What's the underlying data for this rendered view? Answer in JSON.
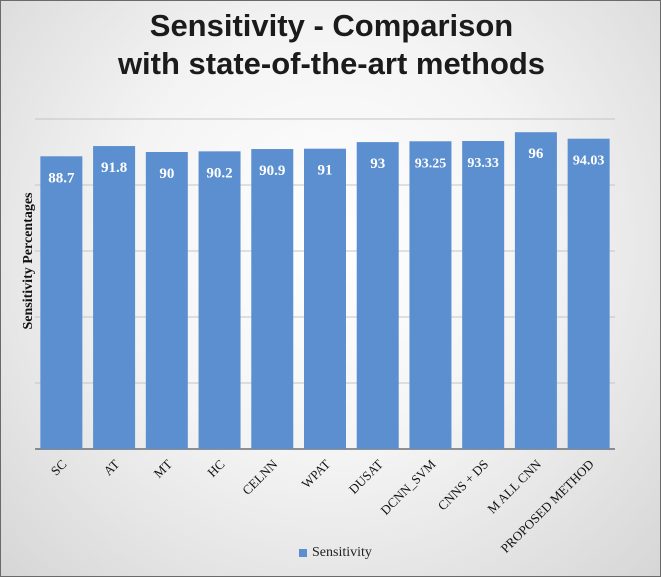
{
  "chart_data": {
    "type": "bar",
    "title_lines": [
      "Sensitivity - Comparison",
      "with state-of-the-art methods"
    ],
    "xlabel": "",
    "ylabel": "Sensitivity  Percentages",
    "categories": [
      "SC",
      "AT",
      "MT",
      "HC",
      "CELNN",
      "WPAT",
      "DUSAT",
      "DCNN_SVM",
      "CNNS + DS",
      "M ALL CNN",
      "PROPOSED METHOD"
    ],
    "series": [
      {
        "name": "Sensitivity",
        "values": [
          88.7,
          91.8,
          90,
          90.2,
          90.9,
          91,
          93,
          93.25,
          93.33,
          96,
          94.03
        ],
        "labels": [
          "88.7",
          "91.8",
          "90",
          "90.2",
          "90.9",
          "91",
          "93",
          "93.25",
          "93.33",
          "96",
          "94.03"
        ],
        "color": "#5b8fd0"
      }
    ],
    "ylim": [
      0,
      100
    ],
    "gridlines": true,
    "y_tick_labels_shown": false,
    "legend_position": "bottom"
  }
}
